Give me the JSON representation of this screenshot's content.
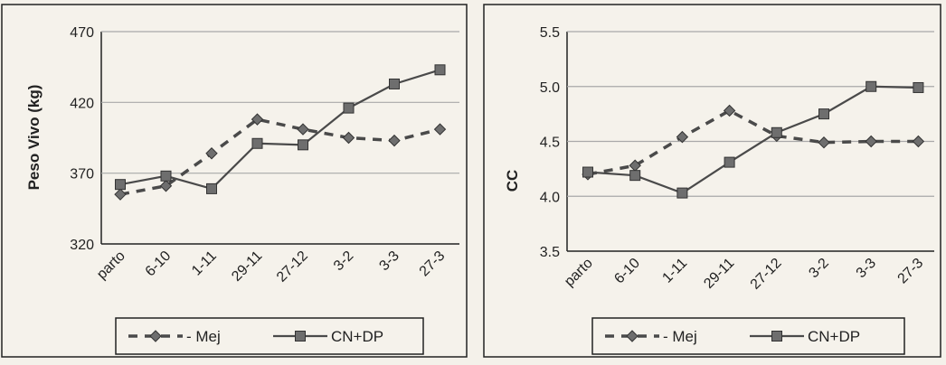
{
  "chart_data": [
    {
      "type": "line",
      "categories": [
        "parto",
        "6-10",
        "1-11",
        "29-11",
        "27-12",
        "3-2",
        "3-3",
        "27-3"
      ],
      "ylabel": "Peso Vivo (kg)",
      "ylim": [
        320,
        470
      ],
      "yticks": [
        "320",
        "370",
        "420",
        "470"
      ],
      "grid": true,
      "legend_position": "bottom",
      "series": [
        {
          "name": "Mej",
          "style": "dashed",
          "marker": "diamond",
          "values": [
            355,
            361,
            384,
            408,
            401,
            395,
            393,
            401
          ]
        },
        {
          "name": "CN+DP",
          "style": "solid",
          "marker": "square",
          "values": [
            362,
            368,
            359,
            391,
            390,
            416,
            433,
            443
          ]
        }
      ]
    },
    {
      "type": "line",
      "categories": [
        "parto",
        "6-10",
        "1-11",
        "29-11",
        "27-12",
        "3-2",
        "3-3",
        "27-3"
      ],
      "ylabel": "CC",
      "ylim": [
        3.5,
        5.5
      ],
      "yticks": [
        "3.5",
        "4.0",
        "4.5",
        "5.0",
        "5.5"
      ],
      "grid": true,
      "legend_position": "bottom",
      "series": [
        {
          "name": "Mej",
          "style": "dashed",
          "marker": "diamond",
          "values": [
            4.2,
            4.28,
            4.54,
            4.78,
            4.55,
            4.49,
            4.5,
            4.5
          ]
        },
        {
          "name": "CN+DP",
          "style": "solid",
          "marker": "square",
          "values": [
            4.22,
            4.19,
            4.03,
            4.31,
            4.58,
            4.75,
            5.0,
            4.99
          ]
        }
      ]
    }
  ],
  "colors": {
    "line": "#4a4a4a",
    "marker": "#6e6e6e",
    "grid": "#a9a9a9",
    "frame": "#222222"
  }
}
